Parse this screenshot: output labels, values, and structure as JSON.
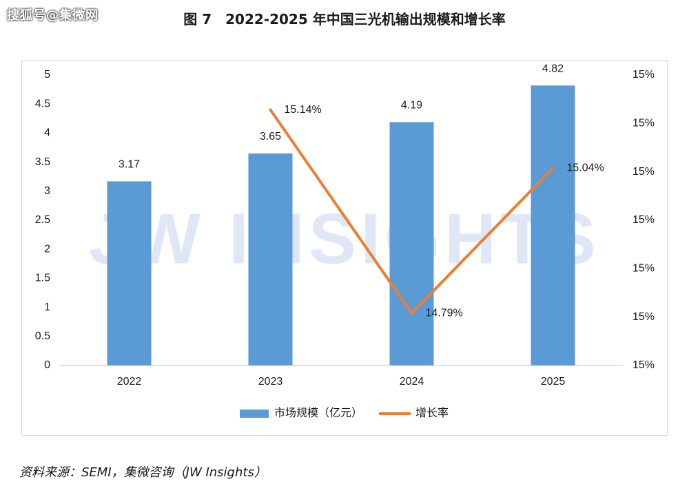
{
  "watermark": "搜狐号@集微网",
  "figure_title": "图 7　2022-2025 年中国三光机输出规模和增长率",
  "source_note": "资料来源：SEMI，集微咨询（JW Insights）",
  "background_watermark": "JW INSIGHTS",
  "colors": {
    "bar": "#5b9bd5",
    "line": "#ed7d31",
    "axis": "#bfbfbf",
    "text": "#1a1a1a",
    "watermark": "#dfe7f6"
  },
  "chart_data": {
    "type": "bar",
    "categories": [
      "2022",
      "2023",
      "2024",
      "2025"
    ],
    "series": [
      {
        "name": "市场规模（亿元）",
        "type": "bar",
        "axis": "left",
        "values": [
          3.17,
          3.65,
          4.19,
          4.82
        ],
        "labels": [
          "3.17",
          "3.65",
          "4.19",
          "4.82"
        ]
      },
      {
        "name": "增长率",
        "type": "line",
        "axis": "right",
        "values": [
          null,
          15.14,
          14.79,
          15.04
        ],
        "labels": [
          "",
          "15.14%",
          "14.79%",
          "15.04%"
        ]
      }
    ],
    "y_left": {
      "ylim": [
        0,
        5
      ],
      "ticks": [
        0,
        0.5,
        1,
        1.5,
        2,
        2.5,
        3,
        3.5,
        4,
        4.5,
        5
      ],
      "tick_labels": [
        "0",
        "0.5",
        "1",
        "1.5",
        "2",
        "2.5",
        "3",
        "3.5",
        "4",
        "4.5",
        "5"
      ]
    },
    "y_right": {
      "ylim": [
        14.7,
        15.2
      ],
      "tick_labels": [
        "15%",
        "15%",
        "15%",
        "15%",
        "15%",
        "15%",
        "15%"
      ]
    },
    "legend_position": "bottom",
    "grid": false
  }
}
